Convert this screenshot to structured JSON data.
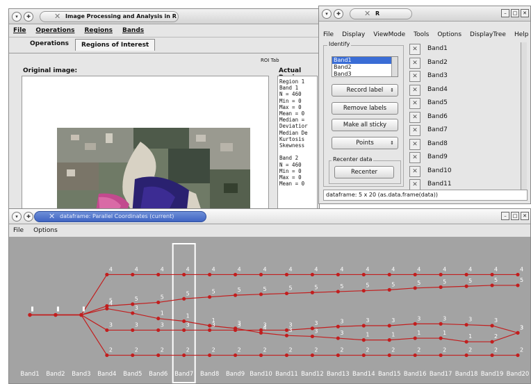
{
  "window1": {
    "title": "Image Processing and Analysis in R",
    "menu": [
      "File",
      "Operations",
      "Regions",
      "Bands"
    ],
    "tabs": [
      "Operations",
      "Regions of Interest"
    ],
    "active_tab": "Regions of Interest",
    "roi_tab_label": "ROI Tab",
    "original_image_label": "Original image:",
    "actual_region_label": "Actual Regio",
    "stats_text": "Region 1\nBand 1\nN = 460\nMin = 0\nMax = 0\nMean = 0\nMedian =\nDeviatior\nMedian De\nKurtosis\nSkewness\n\nBand 2\nN = 460\nMin = 0\nMax = 0\nMean = 0"
  },
  "window2": {
    "title": "R",
    "menu": [
      "File",
      "Display",
      "ViewMode",
      "Tools",
      "Options",
      "DisplayTree",
      "Help"
    ],
    "identify_label": "Identify",
    "identify_list": [
      "Band1",
      "Band2",
      "Band3"
    ],
    "record_label": "Record label",
    "remove_labels": "Remove labels",
    "make_all_sticky": "Make all sticky",
    "points": "Points",
    "recenter_group": "Recenter data",
    "recenter_button": "Recenter",
    "variables": [
      "Band1",
      "Band2",
      "Band3",
      "Band4",
      "Band5",
      "Band6",
      "Band7",
      "Band8",
      "Band9",
      "Band10",
      "Band11"
    ],
    "status": "dataframe: 5 x 20 (as.data.frame(data))"
  },
  "window3": {
    "title": "dataframe: Parallel Coordinates (current)",
    "menu": [
      "File",
      "Options"
    ],
    "highlight_axis": "Band7"
  },
  "colors": {
    "plot_bg": "#a3a3a3",
    "line": "#c21e1e",
    "point": "#c21e1e",
    "highlight_box": "#ffffff",
    "selection": "#3a6dd6"
  },
  "chart_data": {
    "type": "parallel-coordinates",
    "axes": [
      "Band1",
      "Band2",
      "Band3",
      "Band4",
      "Band5",
      "Band6",
      "Band7",
      "Band8",
      "Band9",
      "Band10",
      "Band11",
      "Band12",
      "Band13",
      "Band14",
      "Band15",
      "Band16",
      "Band17",
      "Band18",
      "Band19",
      "Band20"
    ],
    "series": [
      {
        "values": [
          0.5,
          0.5,
          0.5,
          0.95,
          0.95,
          0.95,
          0.95,
          0.95,
          0.95,
          0.95,
          0.95,
          0.95,
          0.95,
          0.95,
          0.95,
          0.95,
          0.95,
          0.95,
          0.95,
          0.95
        ],
        "labels": [
          "",
          "",
          "",
          "4",
          "4",
          "4",
          "4",
          "4",
          "4",
          "4",
          "4",
          "4",
          "4",
          "4",
          "4",
          "4",
          "4",
          "4",
          "4",
          "4"
        ]
      },
      {
        "values": [
          0.5,
          0.5,
          0.5,
          0.6,
          0.62,
          0.64,
          0.68,
          0.7,
          0.72,
          0.73,
          0.74,
          0.75,
          0.76,
          0.77,
          0.78,
          0.8,
          0.81,
          0.82,
          0.83,
          0.83
        ],
        "labels": [
          "",
          "",
          "",
          "5",
          "5",
          "5",
          "5",
          "5",
          "5",
          "5",
          "5",
          "5",
          "5",
          "5",
          "5",
          "5",
          "5",
          "5",
          "5",
          "5"
        ]
      },
      {
        "values": [
          0.5,
          0.5,
          0.5,
          0.57,
          0.52,
          0.46,
          0.43,
          0.38,
          0.35,
          0.3,
          0.27,
          0.26,
          0.24,
          0.22,
          0.22,
          0.24,
          0.24,
          0.2,
          0.2,
          0.3
        ],
        "labels": [
          "",
          "",
          "",
          "4",
          "3",
          "1",
          "1",
          "1",
          "3",
          "4",
          "3",
          "3",
          "3",
          "1",
          "1",
          "1",
          "1",
          "1",
          "2",
          "3"
        ]
      },
      {
        "values": [
          0.5,
          0.5,
          0.5,
          0.33,
          0.33,
          0.33,
          0.33,
          0.33,
          0.33,
          0.33,
          0.33,
          0.35,
          0.37,
          0.38,
          0.38,
          0.4,
          0.4,
          0.39,
          0.38,
          0.3
        ],
        "labels": [
          "",
          "",
          "",
          "3",
          "3",
          "3",
          "3",
          "3",
          "3",
          "3",
          "3",
          "3",
          "3",
          "3",
          "3",
          "3",
          "3",
          "3",
          "3",
          "3"
        ]
      },
      {
        "values": [
          0.5,
          0.5,
          0.5,
          0.05,
          0.05,
          0.05,
          0.05,
          0.05,
          0.05,
          0.05,
          0.05,
          0.05,
          0.05,
          0.05,
          0.05,
          0.05,
          0.05,
          0.05,
          0.05,
          0.05
        ],
        "labels": [
          "",
          "",
          "",
          "2",
          "2",
          "2",
          "2",
          "2",
          "2",
          "2",
          "2",
          "2",
          "2",
          "2",
          "2",
          "2",
          "2",
          "2",
          "2",
          "2"
        ]
      }
    ]
  }
}
